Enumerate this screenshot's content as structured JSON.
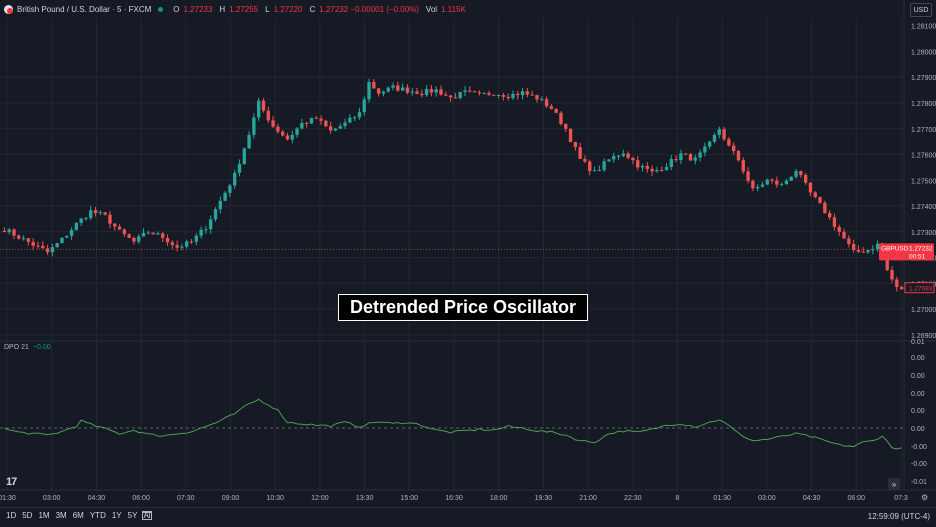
{
  "header": {
    "symbol": "British Pound / U.S. Dollar · 5 · FXCM",
    "o_label": "O",
    "o_value": "1.27233",
    "h_label": "H",
    "h_value": "1.27255",
    "l_label": "L",
    "l_value": "1.27220",
    "c_label": "C",
    "c_value": "1.27232 −0.00001 (−0.00%)",
    "vol_label": "Vol",
    "vol_value": "1.115K"
  },
  "currency": "USD",
  "indicator": {
    "name": "DPO 21",
    "value": "−0.00"
  },
  "banner": "Detrended Price Oscillator",
  "price_tag": {
    "symbol": "GBPUSD",
    "price": "1.27232",
    "countdown": "00:51"
  },
  "low_tag": "1.27083",
  "timeframes": [
    "1D",
    "5D",
    "1M",
    "3M",
    "6M",
    "YTD",
    "1Y",
    "5Y",
    "All"
  ],
  "clock": "12:59:09 (UTC-4)",
  "colors": {
    "up": "#26a69a",
    "down": "#ef5350",
    "dpo": "#4caf50",
    "bg": "#161a25",
    "grid": "#232733"
  },
  "chart_data": [
    {
      "type": "candlestick",
      "x_ticks": [
        "01:30",
        "03:00",
        "04:30",
        "06:00",
        "07:30",
        "09:00",
        "10:30",
        "12:00",
        "13:30",
        "15:00",
        "16:30",
        "18:00",
        "19:30",
        "21:00",
        "22:30",
        "8",
        "01:30",
        "03:00",
        "04:30",
        "06:00",
        "07:3"
      ],
      "y_ticks": [
        1.277,
        1.278,
        1.279,
        1.28,
        1.281
      ],
      "ylim": [
        1.2688,
        1.2813
      ],
      "last_price": 1.27232,
      "close_path": [
        [
          0,
          1.2731
        ],
        [
          3,
          1.2728
        ],
        [
          6,
          1.2725
        ],
        [
          9,
          1.2722
        ],
        [
          12,
          1.2727
        ],
        [
          15,
          1.2733
        ],
        [
          18,
          1.2738
        ],
        [
          21,
          1.2736
        ],
        [
          24,
          1.273
        ],
        [
          27,
          1.2726
        ],
        [
          30,
          1.273
        ],
        [
          33,
          1.2728
        ],
        [
          36,
          1.2724
        ],
        [
          39,
          1.2726
        ],
        [
          42,
          1.2732
        ],
        [
          45,
          1.2742
        ],
        [
          48,
          1.2752
        ],
        [
          51,
          1.2768
        ],
        [
          53,
          1.278
        ],
        [
          56,
          1.2771
        ],
        [
          59,
          1.2766
        ],
        [
          62,
          1.2772
        ],
        [
          65,
          1.2774
        ],
        [
          68,
          1.2769
        ],
        [
          71,
          1.2772
        ],
        [
          74,
          1.2776
        ],
        [
          76,
          1.2788
        ],
        [
          78,
          1.2784
        ],
        [
          81,
          1.2786
        ],
        [
          84,
          1.2785
        ],
        [
          87,
          1.2784
        ],
        [
          90,
          1.2785
        ],
        [
          93,
          1.2782
        ],
        [
          96,
          1.2784
        ],
        [
          99,
          1.2783
        ],
        [
          102,
          1.2784
        ],
        [
          105,
          1.2783
        ],
        [
          108,
          1.2784
        ],
        [
          111,
          1.2782
        ],
        [
          114,
          1.2778
        ],
        [
          117,
          1.277
        ],
        [
          120,
          1.2758
        ],
        [
          123,
          1.2753
        ],
        [
          126,
          1.2758
        ],
        [
          129,
          1.2761
        ],
        [
          132,
          1.2756
        ],
        [
          135,
          1.2753
        ],
        [
          138,
          1.2756
        ],
        [
          141,
          1.276
        ],
        [
          144,
          1.2758
        ],
        [
          147,
          1.2764
        ],
        [
          149,
          1.277
        ],
        [
          151,
          1.2763
        ],
        [
          153,
          1.2758
        ],
        [
          156,
          1.2746
        ],
        [
          159,
          1.275
        ],
        [
          162,
          1.2748
        ],
        [
          165,
          1.2754
        ],
        [
          168,
          1.2745
        ],
        [
          171,
          1.2738
        ],
        [
          174,
          1.273
        ],
        [
          177,
          1.2722
        ],
        [
          180,
          1.2723
        ],
        [
          182,
          1.2725
        ],
        [
          184,
          1.2715
        ],
        [
          186,
          1.2708
        ]
      ]
    },
    {
      "type": "line",
      "name": "DPO 21",
      "y_ticks": [
        0.01,
        0.0,
        -0.01
      ],
      "zero_line": 0,
      "values": [
        [
          0,
          -0.0001
        ],
        [
          3,
          -0.0006
        ],
        [
          6,
          -0.0008
        ],
        [
          9,
          -0.001
        ],
        [
          12,
          -0.0005
        ],
        [
          15,
          0.0003
        ],
        [
          16,
          0.001
        ],
        [
          18,
          0.0005
        ],
        [
          21,
          -0.0001
        ],
        [
          24,
          -0.0008
        ],
        [
          27,
          -0.0003
        ],
        [
          30,
          -0.0009
        ],
        [
          33,
          -0.0011
        ],
        [
          36,
          -0.0008
        ],
        [
          39,
          -0.0005
        ],
        [
          42,
          0.0002
        ],
        [
          45,
          0.001
        ],
        [
          48,
          0.002
        ],
        [
          51,
          0.0034
        ],
        [
          53,
          0.004
        ],
        [
          55,
          0.0033
        ],
        [
          57,
          0.0025
        ],
        [
          59,
          0.0008
        ],
        [
          62,
          0.0006
        ],
        [
          65,
          0.0004
        ],
        [
          68,
          0.0003
        ],
        [
          71,
          0.0008
        ],
        [
          74,
          0.0002
        ],
        [
          76,
          0.0006
        ],
        [
          78,
          0.0009
        ],
        [
          81,
          0.0006
        ],
        [
          84,
          0.0008
        ],
        [
          87,
          0.0004
        ],
        [
          90,
          -0.0003
        ],
        [
          93,
          -0.0006
        ],
        [
          96,
          -0.0004
        ],
        [
          99,
          -0.0002
        ],
        [
          102,
          -0.0003
        ],
        [
          105,
          0.0002
        ],
        [
          108,
          0.0
        ],
        [
          111,
          -0.0004
        ],
        [
          114,
          -0.0006
        ],
        [
          117,
          -0.001
        ],
        [
          120,
          -0.0018
        ],
        [
          123,
          -0.002
        ],
        [
          126,
          -0.0008
        ],
        [
          129,
          -0.0004
        ],
        [
          132,
          -0.0006
        ],
        [
          135,
          -0.0002
        ],
        [
          138,
          0.0004
        ],
        [
          141,
          0.0006
        ],
        [
          144,
          0.0002
        ],
        [
          147,
          0.0008
        ],
        [
          149,
          0.0012
        ],
        [
          151,
          0.0003
        ],
        [
          153,
          -0.0008
        ],
        [
          156,
          -0.0018
        ],
        [
          159,
          -0.0016
        ],
        [
          162,
          -0.0012
        ],
        [
          165,
          -0.0008
        ],
        [
          168,
          -0.0012
        ],
        [
          171,
          -0.0018
        ],
        [
          174,
          -0.0024
        ],
        [
          177,
          -0.0026
        ],
        [
          179,
          -0.002
        ],
        [
          181,
          -0.0018
        ],
        [
          183,
          -0.0011
        ],
        [
          185,
          -0.0028
        ]
      ]
    }
  ]
}
